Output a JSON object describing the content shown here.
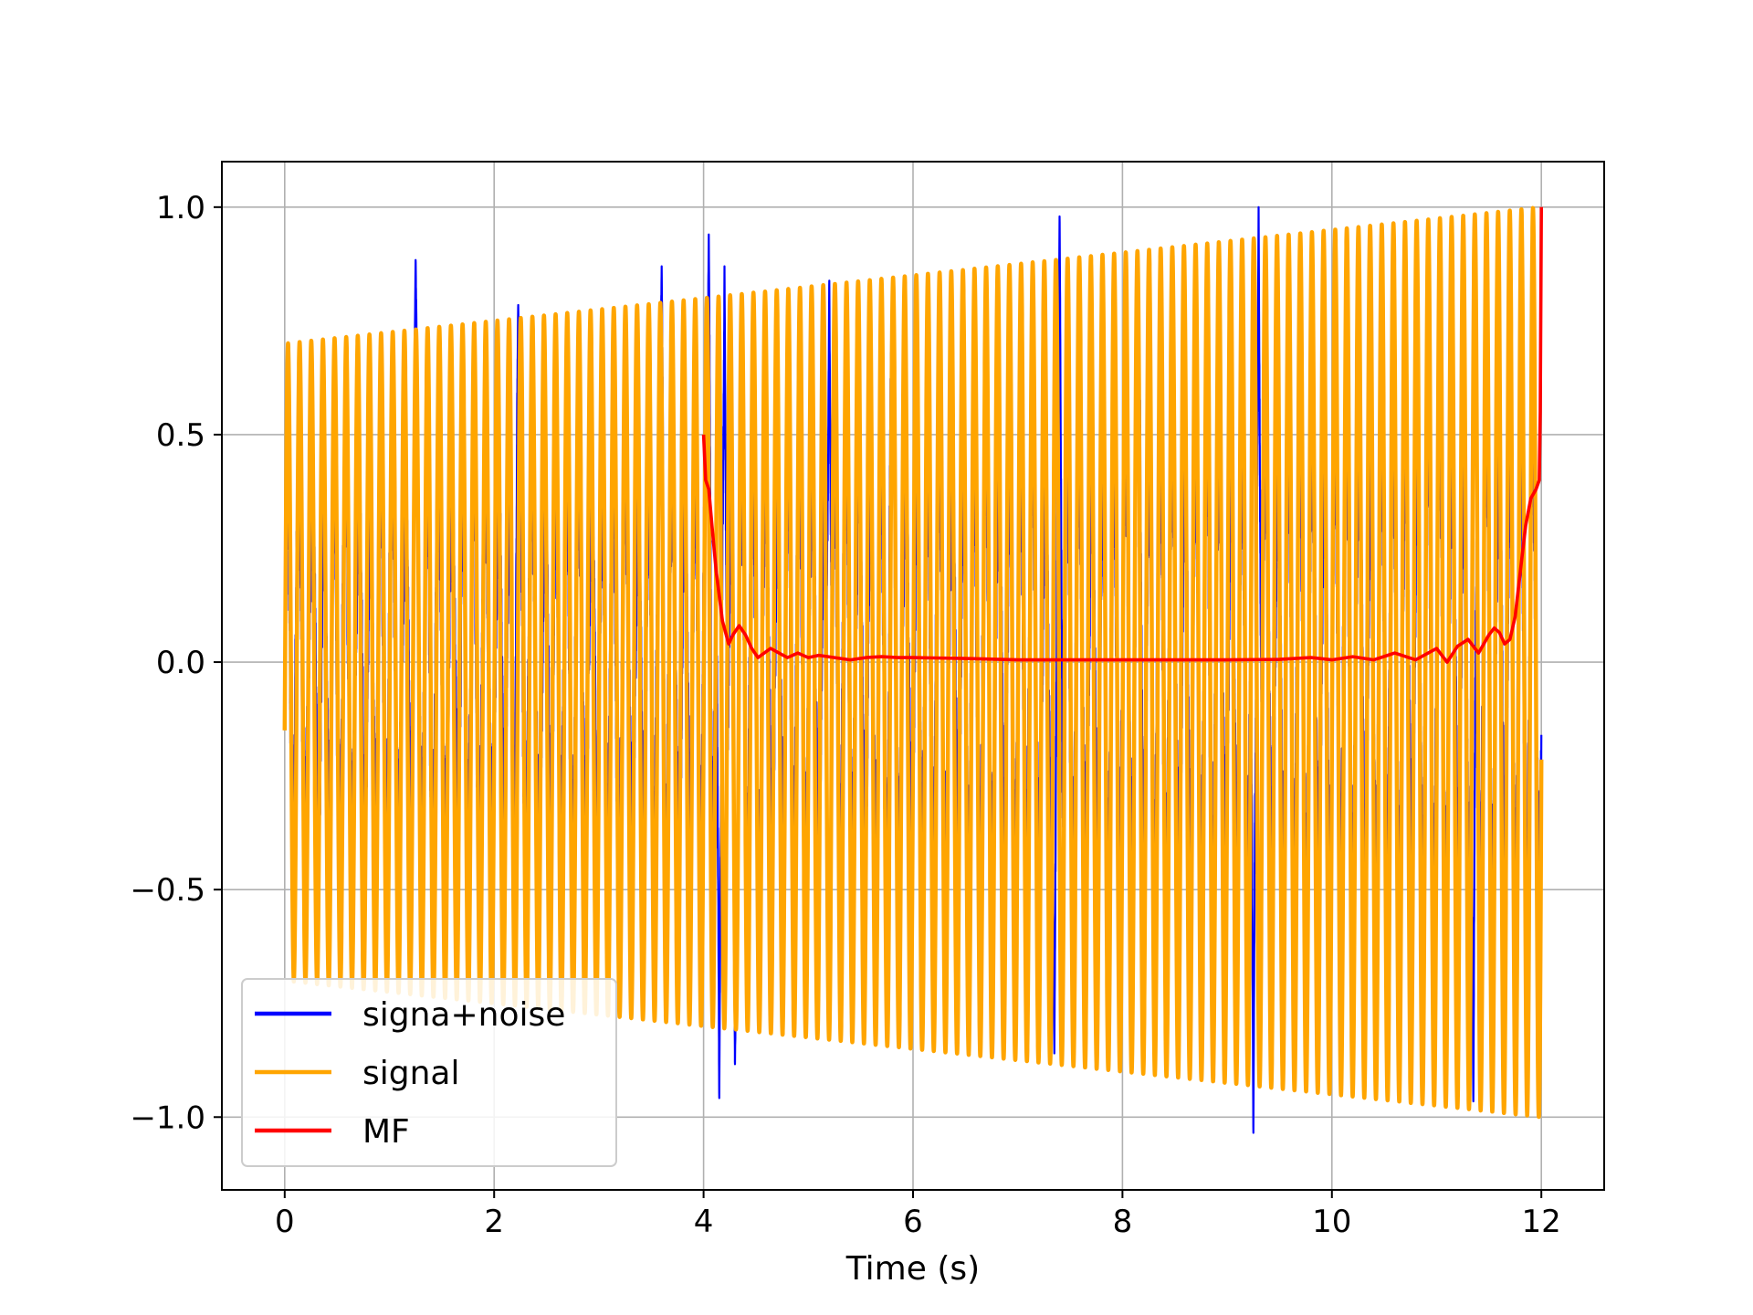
{
  "chart_data": {
    "type": "line",
    "title": "",
    "xlabel": "Time (s)",
    "ylabel": "",
    "xlim": [
      -0.6,
      12.6
    ],
    "ylim": [
      -1.16,
      1.1
    ],
    "x_ticks": [
      0,
      2,
      4,
      6,
      8,
      10,
      12
    ],
    "x_tick_labels": [
      "0",
      "2",
      "4",
      "6",
      "8",
      "10",
      "12"
    ],
    "y_ticks": [
      -1.0,
      -0.5,
      0.0,
      0.5,
      1.0
    ],
    "y_tick_labels": [
      "−1.0",
      "−0.5",
      "0.0",
      "0.5",
      "1.0"
    ],
    "grid": true,
    "legend_position": "lower-left",
    "series": [
      {
        "name": "signa+noise",
        "color": "#0000ff",
        "kind": "noisy oscillation",
        "x_range": [
          0,
          12
        ],
        "cycles_per_second": 9,
        "peaks": [
          {
            "x": 1.25,
            "y": 0.89
          },
          {
            "x": 2.23,
            "y": 0.79
          },
          {
            "x": 3.6,
            "y": 0.87
          },
          {
            "x": 4.05,
            "y": 0.94
          },
          {
            "x": 4.2,
            "y": 0.87
          },
          {
            "x": 5.2,
            "y": 0.85
          },
          {
            "x": 5.8,
            "y": 0.82
          },
          {
            "x": 7.4,
            "y": 0.99
          },
          {
            "x": 8.15,
            "y": 0.89
          },
          {
            "x": 9.3,
            "y": 1.0
          }
        ],
        "troughs": [
          {
            "x": 4.15,
            "y": -0.97
          },
          {
            "x": 4.3,
            "y": -0.89
          },
          {
            "x": 7.35,
            "y": -0.86
          },
          {
            "x": 9.25,
            "y": -1.05
          },
          {
            "x": 11.35,
            "y": -0.98
          }
        ]
      },
      {
        "name": "signal",
        "color": "#ffa500",
        "kind": "sinusoid with linearly growing amplitude",
        "x_range": [
          0,
          12
        ],
        "cycles_per_second": 9,
        "amplitude_start": 0.7,
        "amplitude_end": 1.0,
        "start_value": -0.15
      },
      {
        "name": "MF",
        "color": "#ff0000",
        "x": [
          4.0,
          4.02,
          4.05,
          4.08,
          4.12,
          4.18,
          4.24,
          4.28,
          4.34,
          4.4,
          4.46,
          4.52,
          4.58,
          4.64,
          4.72,
          4.8,
          4.9,
          5.0,
          5.1,
          5.25,
          5.4,
          5.55,
          5.7,
          5.85,
          6.0,
          6.5,
          7.0,
          8.0,
          9.0,
          9.5,
          9.8,
          10.0,
          10.2,
          10.4,
          10.6,
          10.8,
          11.0,
          11.1,
          11.2,
          11.3,
          11.4,
          11.5,
          11.55,
          11.6,
          11.65,
          11.7,
          11.75,
          11.8,
          11.85,
          11.9,
          11.95,
          11.98,
          11.99,
          12.0
        ],
        "values": [
          0.5,
          0.4,
          0.38,
          0.3,
          0.2,
          0.09,
          0.04,
          0.06,
          0.08,
          0.06,
          0.03,
          0.01,
          0.02,
          0.03,
          0.02,
          0.01,
          0.02,
          0.01,
          0.015,
          0.01,
          0.005,
          0.01,
          0.012,
          0.01,
          0.01,
          0.008,
          0.005,
          0.005,
          0.005,
          0.006,
          0.01,
          0.005,
          0.012,
          0.005,
          0.02,
          0.005,
          0.03,
          0.0,
          0.035,
          0.05,
          0.02,
          0.06,
          0.075,
          0.065,
          0.04,
          0.05,
          0.1,
          0.2,
          0.3,
          0.36,
          0.38,
          0.4,
          0.55,
          1.0
        ]
      }
    ]
  }
}
